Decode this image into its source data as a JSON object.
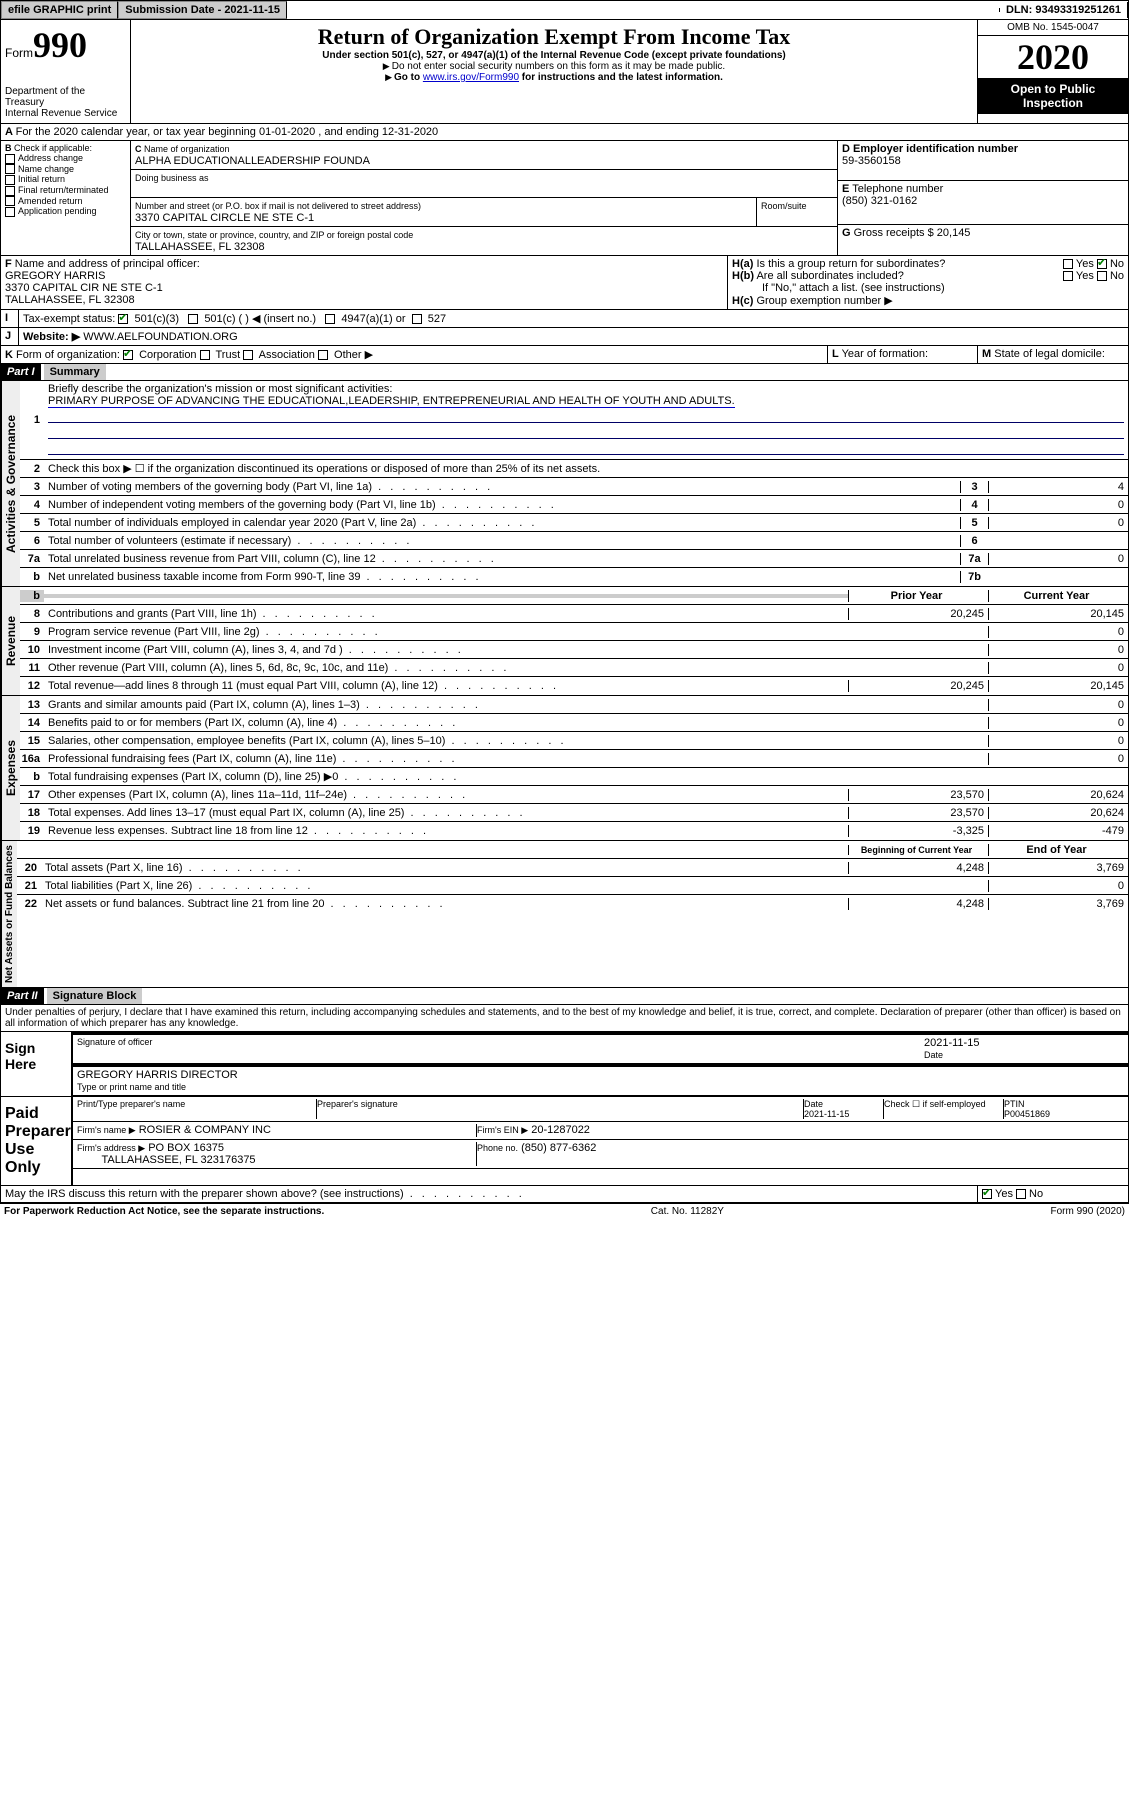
{
  "topbar": {
    "efile": "efile GRAPHIC print",
    "sub_label": "Submission Date - 2021-11-15",
    "dln": "DLN: 93493319251261"
  },
  "header": {
    "form_word": "Form",
    "form_num": "990",
    "dept": "Department of the Treasury\nInternal Revenue Service",
    "title": "Return of Organization Exempt From Income Tax",
    "subtitle": "Under section 501(c), 527, or 4947(a)(1) of the Internal Revenue Code (except private foundations)",
    "note1": "Do not enter social security numbers on this form as it may be made public.",
    "note2_pre": "Go to ",
    "note2_link": "www.irs.gov/Form990",
    "note2_post": " for instructions and the latest information.",
    "omb": "OMB No. 1545-0047",
    "year": "2020",
    "open": "Open to Public Inspection"
  },
  "A": {
    "text": "For the 2020 calendar year, or tax year beginning 01-01-2020    , and ending 12-31-2020"
  },
  "B": {
    "label": "Check if applicable:",
    "items": [
      "Address change",
      "Name change",
      "Initial return",
      "Final return/terminated",
      "Amended return",
      "Application pending"
    ]
  },
  "C": {
    "name_label": "Name of organization",
    "name": "ALPHA EDUCATIONALLEADERSHIP FOUNDA",
    "dba_label": "Doing business as",
    "addr_label": "Number and street (or P.O. box if mail is not delivered to street address)",
    "room_label": "Room/suite",
    "addr": "3370 CAPITAL CIRCLE NE STE C-1",
    "city_label": "City or town, state or province, country, and ZIP or foreign postal code",
    "city": "TALLAHASSEE, FL  32308"
  },
  "D": {
    "label": "Employer identification number",
    "val": "59-3560158"
  },
  "E": {
    "label": "Telephone number",
    "val": "(850) 321-0162"
  },
  "G": {
    "label": "Gross receipts $",
    "val": "20,145"
  },
  "F": {
    "label": "Name and address of principal officer:",
    "name": "GREGORY HARRIS",
    "addr1": "3370 CAPITAL CIR NE STE C-1",
    "addr2": "TALLAHASSEE, FL  32308"
  },
  "H": {
    "a": "Is this a group return for subordinates?",
    "b": "Are all subordinates included?",
    "note": "If \"No,\" attach a list. (see instructions)",
    "c": "Group exemption number ▶",
    "yes": "Yes",
    "no": "No"
  },
  "I": {
    "label": "Tax-exempt status:",
    "opts": [
      "501(c)(3)",
      "501(c) (   ) ◀ (insert no.)",
      "4947(a)(1) or",
      "527"
    ]
  },
  "J": {
    "label": "Website: ▶",
    "val": "WWW.AELFOUNDATION.ORG"
  },
  "K": {
    "label": "Form of organization:",
    "opts": [
      "Corporation",
      "Trust",
      "Association",
      "Other ▶"
    ]
  },
  "L": {
    "label": "Year of formation:"
  },
  "M": {
    "label": "State of legal domicile:"
  },
  "part1": {
    "hdr": "Part I",
    "title": "Summary",
    "l1": "Briefly describe the organization's mission or most significant activities:",
    "l1v": "PRIMARY PURPOSE OF ADVANCING THE EDUCATIONAL,LEADERSHIP, ENTREPRENEURIAL AND HEALTH OF YOUTH AND ADULTS.",
    "l2": "Check this box ▶ ☐  if the organization discontinued its operations or disposed of more than 25% of its net assets.",
    "lines": [
      {
        "n": "3",
        "t": "Number of voting members of the governing body (Part VI, line 1a)",
        "c": "3",
        "v": "4"
      },
      {
        "n": "4",
        "t": "Number of independent voting members of the governing body (Part VI, line 1b)",
        "c": "4",
        "v": "0"
      },
      {
        "n": "5",
        "t": "Total number of individuals employed in calendar year 2020 (Part V, line 2a)",
        "c": "5",
        "v": "0"
      },
      {
        "n": "6",
        "t": "Total number of volunteers (estimate if necessary)",
        "c": "6",
        "v": ""
      },
      {
        "n": "7a",
        "t": "Total unrelated business revenue from Part VIII, column (C), line 12",
        "c": "7a",
        "v": "0"
      },
      {
        "n": "b",
        "t": "Net unrelated business taxable income from Form 990-T, line 39",
        "c": "7b",
        "v": ""
      }
    ],
    "col_prior": "Prior Year",
    "col_curr": "Current Year",
    "rev": [
      {
        "n": "8",
        "t": "Contributions and grants (Part VIII, line 1h)",
        "p": "20,245",
        "c": "20,145"
      },
      {
        "n": "9",
        "t": "Program service revenue (Part VIII, line 2g)",
        "p": "",
        "c": "0"
      },
      {
        "n": "10",
        "t": "Investment income (Part VIII, column (A), lines 3, 4, and 7d )",
        "p": "",
        "c": "0"
      },
      {
        "n": "11",
        "t": "Other revenue (Part VIII, column (A), lines 5, 6d, 8c, 9c, 10c, and 11e)",
        "p": "",
        "c": "0"
      },
      {
        "n": "12",
        "t": "Total revenue—add lines 8 through 11 (must equal Part VIII, column (A), line 12)",
        "p": "20,245",
        "c": "20,145"
      }
    ],
    "exp": [
      {
        "n": "13",
        "t": "Grants and similar amounts paid (Part IX, column (A), lines 1–3)",
        "p": "",
        "c": "0"
      },
      {
        "n": "14",
        "t": "Benefits paid to or for members (Part IX, column (A), line 4)",
        "p": "",
        "c": "0"
      },
      {
        "n": "15",
        "t": "Salaries, other compensation, employee benefits (Part IX, column (A), lines 5–10)",
        "p": "",
        "c": "0"
      },
      {
        "n": "16a",
        "t": "Professional fundraising fees (Part IX, column (A), line 11e)",
        "p": "",
        "c": "0"
      },
      {
        "n": "b",
        "t": "Total fundraising expenses (Part IX, column (D), line 25) ▶0",
        "p": "shade",
        "c": "shade"
      },
      {
        "n": "17",
        "t": "Other expenses (Part IX, column (A), lines 11a–11d, 11f–24e)",
        "p": "23,570",
        "c": "20,624"
      },
      {
        "n": "18",
        "t": "Total expenses. Add lines 13–17 (must equal Part IX, column (A), line 25)",
        "p": "23,570",
        "c": "20,624"
      },
      {
        "n": "19",
        "t": "Revenue less expenses. Subtract line 18 from line 12",
        "p": "-3,325",
        "c": "-479"
      }
    ],
    "col_beg": "Beginning of Current Year",
    "col_end": "End of Year",
    "net": [
      {
        "n": "20",
        "t": "Total assets (Part X, line 16)",
        "p": "4,248",
        "c": "3,769"
      },
      {
        "n": "21",
        "t": "Total liabilities (Part X, line 26)",
        "p": "",
        "c": "0"
      },
      {
        "n": "22",
        "t": "Net assets or fund balances. Subtract line 21 from line 20",
        "p": "4,248",
        "c": "3,769"
      }
    ],
    "side_ag": "Activities & Governance",
    "side_rev": "Revenue",
    "side_exp": "Expenses",
    "side_net": "Net Assets or Fund Balances"
  },
  "part2": {
    "hdr": "Part II",
    "title": "Signature Block",
    "perjury": "Under penalties of perjury, I declare that I have examined this return, including accompanying schedules and statements, and to the best of my knowledge and belief, it is true, correct, and complete. Declaration of preparer (other than officer) is based on all information of which preparer has any knowledge.",
    "sign_here": "Sign Here",
    "sig_officer": "Signature of officer",
    "date": "Date",
    "sig_date": "2021-11-15",
    "name_title": "GREGORY HARRIS  DIRECTOR",
    "type_name": "Type or print name and title",
    "paid": "Paid Preparer Use Only",
    "prep_name": "Print/Type preparer's name",
    "prep_sig": "Preparer's signature",
    "prep_date_lbl": "Date",
    "prep_date": "2021-11-15",
    "self_emp": "Check ☐ if self-employed",
    "ptin_lbl": "PTIN",
    "ptin": "P00451869",
    "firm_name_lbl": "Firm's name    ▶",
    "firm_name": "ROSIER & COMPANY INC",
    "firm_ein_lbl": "Firm's EIN ▶",
    "firm_ein": "20-1287022",
    "firm_addr_lbl": "Firm's address ▶",
    "firm_addr": "PO BOX 16375",
    "firm_city": "TALLAHASSEE, FL  323176375",
    "phone_lbl": "Phone no.",
    "phone": "(850) 877-6362",
    "discuss": "May the IRS discuss this return with the preparer shown above? (see instructions)",
    "yes": "Yes",
    "no": "No"
  },
  "footer": {
    "left": "For Paperwork Reduction Act Notice, see the separate instructions.",
    "mid": "Cat. No. 11282Y",
    "right": "Form 990 (2020)"
  }
}
